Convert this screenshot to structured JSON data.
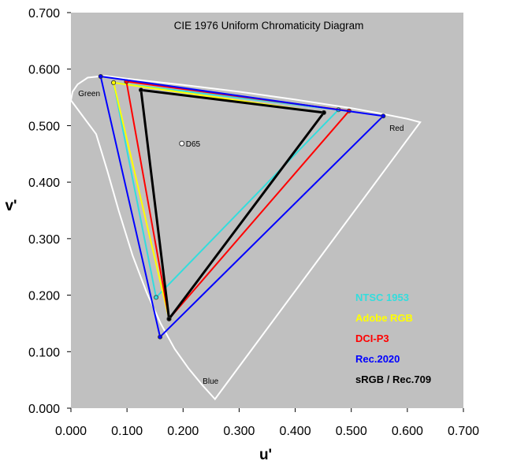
{
  "chart_data": {
    "type": "scatter",
    "title": "CIE 1976 Uniform Chromaticity Diagram",
    "xlabel": "u'",
    "ylabel": "v'",
    "xlim": [
      0.0,
      0.7
    ],
    "ylim": [
      0.0,
      0.7
    ],
    "xticks": [
      "0.000",
      "0.100",
      "0.200",
      "0.300",
      "0.400",
      "0.500",
      "0.600",
      "0.700"
    ],
    "yticks": [
      "0.000",
      "0.100",
      "0.200",
      "0.300",
      "0.400",
      "0.500",
      "0.600",
      "0.700"
    ],
    "grid": false,
    "background": "#c0c0c0",
    "spectral_locus": {
      "color": "#ffffff",
      "points": [
        [
          0.257,
          0.016
        ],
        [
          0.235,
          0.04
        ],
        [
          0.21,
          0.07
        ],
        [
          0.185,
          0.105
        ],
        [
          0.16,
          0.15
        ],
        [
          0.135,
          0.205
        ],
        [
          0.11,
          0.27
        ],
        [
          0.085,
          0.35
        ],
        [
          0.065,
          0.42
        ],
        [
          0.045,
          0.485
        ],
        [
          0.0,
          0.545
        ],
        [
          0.003,
          0.56
        ],
        [
          0.012,
          0.573
        ],
        [
          0.03,
          0.585
        ],
        [
          0.06,
          0.588
        ],
        [
          0.1,
          0.583
        ],
        [
          0.2,
          0.572
        ],
        [
          0.3,
          0.56
        ],
        [
          0.4,
          0.546
        ],
        [
          0.5,
          0.531
        ],
        [
          0.55,
          0.522
        ],
        [
          0.6,
          0.512
        ],
        [
          0.623,
          0.506
        ]
      ],
      "line_of_purples": [
        [
          0.623,
          0.506
        ],
        [
          0.257,
          0.016
        ]
      ]
    },
    "region_labels": [
      {
        "text": "Green",
        "u": 0.013,
        "v": 0.552
      },
      {
        "text": "Red",
        "u": 0.568,
        "v": 0.491
      },
      {
        "text": "Blue",
        "u": 0.235,
        "v": 0.043
      }
    ],
    "white_point": {
      "label": "D65",
      "u": 0.1978,
      "v": 0.4683
    },
    "series": [
      {
        "name": "NTSC 1953",
        "color": "#33dddd",
        "points": [
          [
            0.477,
            0.528
          ],
          [
            0.076,
            0.576
          ],
          [
            0.152,
            0.196
          ]
        ]
      },
      {
        "name": "Adobe RGB",
        "color": "#ffff00",
        "points": [
          [
            0.451,
            0.523
          ],
          [
            0.076,
            0.576
          ],
          [
            0.175,
            0.158
          ]
        ]
      },
      {
        "name": "DCI-P3",
        "color": "#ff0000",
        "points": [
          [
            0.496,
            0.526
          ],
          [
            0.099,
            0.578
          ],
          [
            0.175,
            0.158
          ]
        ]
      },
      {
        "name": "Rec.2020",
        "color": "#0000ff",
        "points": [
          [
            0.557,
            0.517
          ],
          [
            0.053,
            0.587
          ],
          [
            0.159,
            0.126
          ]
        ]
      },
      {
        "name": "sRGB / Rec.709",
        "color": "#000000",
        "points": [
          [
            0.451,
            0.523
          ],
          [
            0.125,
            0.563
          ],
          [
            0.175,
            0.158
          ]
        ]
      }
    ],
    "legend": {
      "position": "bottom-right"
    }
  }
}
